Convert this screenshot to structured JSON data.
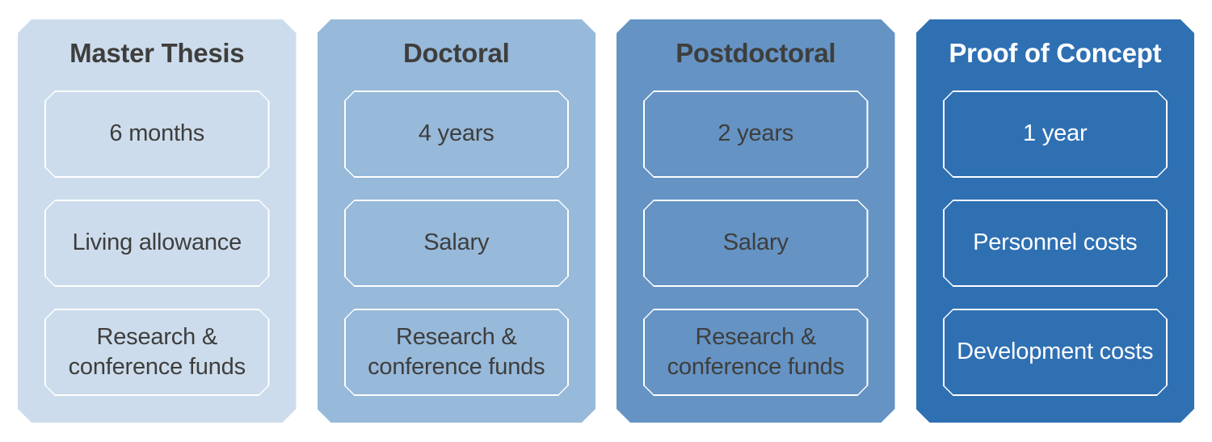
{
  "page": {
    "background_color": "#ffffff"
  },
  "diagram": {
    "columns": [
      {
        "id": "master-thesis",
        "title": "Master Thesis",
        "bg_color": "#ccdcec",
        "text_color": "#3e3e3d",
        "box_border_color": "#ffffff",
        "items": [
          "6 months",
          "Living allowance",
          "Research & conference funds"
        ]
      },
      {
        "id": "doctoral",
        "title": "Doctoral",
        "bg_color": "#97b9da",
        "text_color": "#3e3e3d",
        "box_border_color": "#ffffff",
        "items": [
          "4 years",
          "Salary",
          "Research & conference funds"
        ]
      },
      {
        "id": "postdoctoral",
        "title": "Postdoctoral",
        "bg_color": "#6593c4",
        "text_color": "#3e3e3d",
        "box_border_color": "#ffffff",
        "items": [
          "2 years",
          "Salary",
          "Research & conference funds"
        ]
      },
      {
        "id": "proof-of-concept",
        "title": "Proof of Concept",
        "bg_color": "#2f70b3",
        "text_color": "#ffffff",
        "box_border_color": "#ffffff",
        "items": [
          "1 year",
          "Personnel costs",
          "Development costs"
        ]
      }
    ]
  }
}
